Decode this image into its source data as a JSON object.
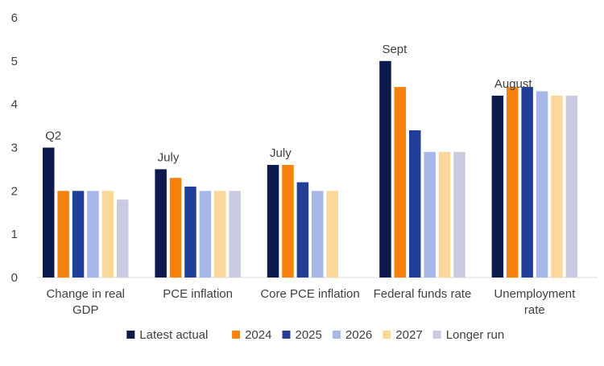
{
  "chart_data": {
    "type": "bar",
    "title": "",
    "xlabel": "",
    "ylabel": "",
    "ylim": [
      0,
      6
    ],
    "yticks": [
      "0",
      "1",
      "2",
      "3",
      "4",
      "5",
      "6"
    ],
    "grid": false,
    "legend_position": "bottom",
    "categories": [
      [
        "Change in real",
        "GDP"
      ],
      [
        "PCE inflation"
      ],
      [
        "Core PCE inflation"
      ],
      [
        "Federal funds rate"
      ],
      [
        "Unemployment",
        "rate"
      ]
    ],
    "annotations": [
      "Q2",
      "July",
      "July",
      "Sept",
      "August"
    ],
    "series": [
      {
        "name": "Latest actual",
        "color": "#0d1b4c",
        "values": [
          3.0,
          2.5,
          2.6,
          5.0,
          4.2
        ]
      },
      {
        "name": "2024",
        "color": "#f6820c",
        "values": [
          2.0,
          2.3,
          2.6,
          4.4,
          4.4
        ]
      },
      {
        "name": "2025",
        "color": "#213f99",
        "values": [
          2.0,
          2.1,
          2.2,
          3.4,
          4.4
        ]
      },
      {
        "name": "2026",
        "color": "#a7b7ea",
        "values": [
          2.0,
          2.0,
          2.0,
          2.9,
          4.3
        ]
      },
      {
        "name": "2027",
        "color": "#fbd79b",
        "values": [
          2.0,
          2.0,
          2.0,
          2.9,
          4.2
        ]
      },
      {
        "name": "Longer run",
        "color": "#c9cbe0",
        "values": [
          1.8,
          2.0,
          null,
          2.9,
          4.2
        ]
      }
    ]
  }
}
